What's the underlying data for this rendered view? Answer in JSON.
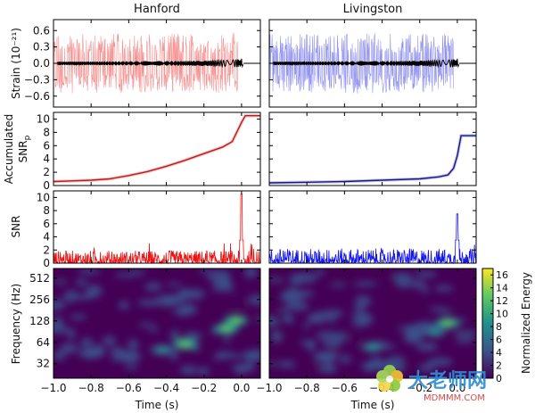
{
  "chart_data": [
    {
      "type": "line",
      "panel": "strain",
      "titles": [
        "Hanford",
        "Livingston"
      ],
      "ylabel": "Strain (10⁻²¹)",
      "yticks": [
        "0.6",
        "0.3",
        "0.0",
        "−0.3",
        "−0.6"
      ],
      "ytick_values": [
        0.6,
        0.3,
        0.0,
        -0.3,
        -0.6
      ],
      "ylim": [
        -0.8,
        0.8
      ],
      "xlim": [
        -1.0,
        0.1
      ],
      "colors": {
        "hanford": "#f26d6d",
        "livingston": "#6f6fe8",
        "template": "#000000"
      },
      "noise_amplitude": 0.55,
      "template_amplitude": 0.07
    },
    {
      "type": "line",
      "panel": "accumulated_snr",
      "ylabel_line1": "Accumulated",
      "ylabel_line2": "SNR",
      "ylabel_sub": "p",
      "yticks": [
        "10",
        "8",
        "6",
        "4",
        "2",
        "0"
      ],
      "ytick_values": [
        10,
        8,
        6,
        4,
        2,
        0
      ],
      "ylim": [
        0,
        11
      ],
      "xlim": [
        -1.0,
        0.1
      ],
      "hanford": {
        "x": [
          -1.0,
          -0.9,
          -0.8,
          -0.7,
          -0.6,
          -0.5,
          -0.4,
          -0.3,
          -0.2,
          -0.1,
          -0.05,
          0.0,
          0.02,
          0.1
        ],
        "y": [
          0.6,
          0.7,
          0.8,
          1.0,
          1.5,
          2.1,
          2.9,
          3.8,
          4.8,
          5.8,
          6.6,
          9.5,
          10.5,
          10.5
        ],
        "color": "#c21818"
      },
      "livingston": {
        "x": [
          -1.0,
          -0.8,
          -0.6,
          -0.4,
          -0.2,
          -0.1,
          -0.05,
          -0.02,
          0.0,
          0.02,
          0.1
        ],
        "y": [
          0.4,
          0.5,
          0.6,
          0.8,
          1.0,
          1.3,
          1.6,
          2.6,
          4.5,
          7.5,
          7.5
        ],
        "color": "#18188a"
      }
    },
    {
      "type": "line",
      "panel": "snr",
      "ylabel": "SNR",
      "yticks": [
        "10",
        "8",
        "6",
        "4",
        "2",
        "0"
      ],
      "ytick_values": [
        10,
        8,
        6,
        4,
        2,
        0
      ],
      "ylim": [
        0,
        11
      ],
      "xlim": [
        -1.0,
        0.1
      ],
      "hanford": {
        "color": "#ee1111",
        "noise_level": 1.2,
        "peak_x": 0.0,
        "peak_y": 10.5
      },
      "livingston": {
        "color": "#1515ee",
        "noise_level": 1.4,
        "peak_x": 0.0,
        "peak_y": 7.5
      }
    },
    {
      "type": "heatmap",
      "panel": "spectrogram",
      "ylabel": "Frequency (Hz)",
      "yticks": [
        "512",
        "256",
        "128",
        "64",
        "32"
      ],
      "ytick_values": [
        512,
        256,
        128,
        64,
        32
      ],
      "ylim": [
        20,
        700
      ],
      "xlabel": "Time (s)",
      "xticks": [
        "−1.0",
        "−0.8",
        "−0.6",
        "−0.4",
        "−0.2",
        "0.0"
      ],
      "xtick_values": [
        -1.0,
        -0.8,
        -0.6,
        -0.4,
        -0.2,
        0.0
      ],
      "xlim": [
        -1.0,
        0.1
      ],
      "colorbar": {
        "label": "Normalized Energy",
        "ticks": [
          "16",
          "14",
          "12",
          "10",
          "8",
          "6",
          "4",
          "2",
          "0"
        ],
        "tick_values": [
          16,
          14,
          12,
          10,
          8,
          6,
          4,
          2,
          0
        ],
        "range": [
          0,
          17
        ],
        "colors": [
          "#440154",
          "#3b528b",
          "#21908d",
          "#5dc863",
          "#fde725"
        ]
      },
      "hanford_blobs": [
        {
          "t": -0.42,
          "f": 50,
          "e": 9
        },
        {
          "t": -0.3,
          "f": 60,
          "e": 13
        },
        {
          "t": -0.08,
          "f": 100,
          "e": 11
        },
        {
          "t": -0.03,
          "f": 130,
          "e": 12
        },
        {
          "t": -0.6,
          "f": 40,
          "e": 6
        },
        {
          "t": -0.8,
          "f": 45,
          "e": 5
        }
      ],
      "livingston_blobs": [
        {
          "t": -0.05,
          "f": 120,
          "e": 12
        },
        {
          "t": -0.12,
          "f": 90,
          "e": 8
        },
        {
          "t": -0.45,
          "f": 55,
          "e": 7
        },
        {
          "t": -0.7,
          "f": 40,
          "e": 5
        }
      ]
    }
  ],
  "watermark": {
    "text": "大老师网",
    "url": "MDMMM.COM"
  }
}
